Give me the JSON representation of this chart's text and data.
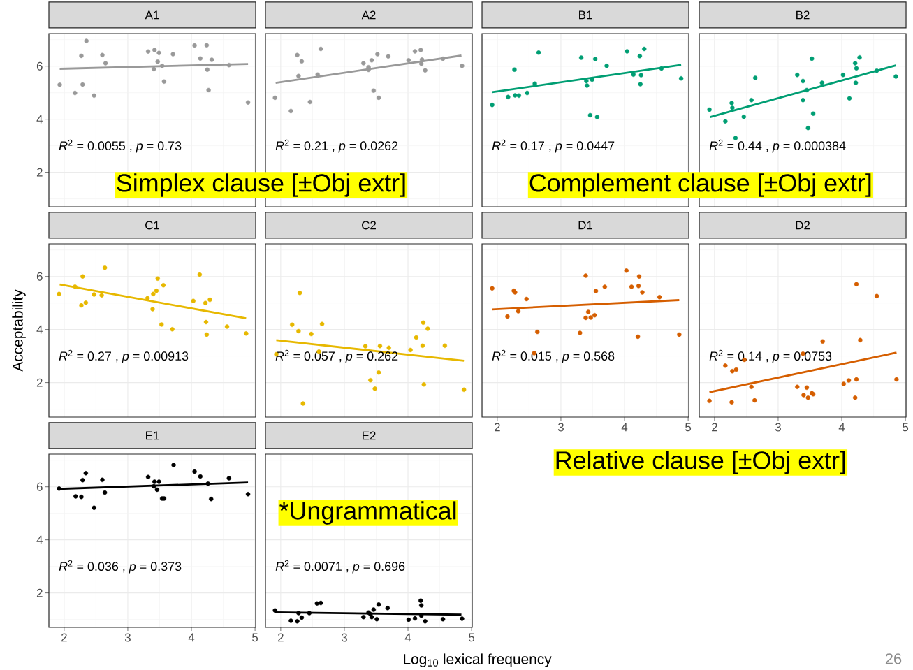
{
  "chart_data": [
    {
      "type": "scatter",
      "title": "A1",
      "xlim": [
        1.76,
        5.01
      ],
      "ylim": [
        0.7,
        7.23
      ],
      "xticks": [
        2,
        3,
        4,
        5
      ],
      "yticks": [
        2,
        4,
        6
      ],
      "grid": true,
      "tick_labels": "y",
      "annotations": [
        "*R*$^{2}$ = 0.0055 , *p* = 0.73",
        "Simplex clause [±Obj extr]"
      ],
      "series": [
        {
          "marker": "circle",
          "color": "#999999",
          "x": [
            1.93,
            2.35,
            2.27,
            2.29,
            2.17,
            2.47,
            2.6,
            2.65,
            3.32,
            3.42,
            3.49,
            3.47,
            3.41,
            3.54,
            3.57,
            3.71,
            4.05,
            4.24,
            4.14,
            4.32,
            4.25,
            4.27,
            4.59,
            4.89
          ],
          "values": [
            5.3,
            6.95,
            6.39,
            5.31,
            4.99,
            4.89,
            6.42,
            6.11,
            6.55,
            6.61,
            6.5,
            6.17,
            5.89,
            6.01,
            5.42,
            6.45,
            6.78,
            6.79,
            6.29,
            6.24,
            5.87,
            5.1,
            6.04,
            4.63
          ]
        },
        {
          "type": "line",
          "color": "#999999",
          "x": [
            1.93,
            4.89
          ],
          "values": [
            5.9,
            6.08
          ]
        }
      ]
    },
    {
      "type": "scatter",
      "title": "A2",
      "xlim": [
        1.76,
        5.01
      ],
      "ylim": [
        0.7,
        7.23
      ],
      "xticks": [
        2,
        3,
        4,
        5
      ],
      "yticks": [
        2,
        4,
        6
      ],
      "grid": true,
      "tick_labels": false,
      "annotations": [
        "*R*$^{2}$ = 0.21 , *p* = 0.0262"
      ],
      "series": [
        {
          "marker": "circle",
          "color": "#999999",
          "x": [
            1.91,
            2.16,
            2.26,
            2.33,
            2.28,
            2.46,
            2.58,
            2.63,
            3.3,
            3.38,
            3.38,
            3.43,
            3.52,
            3.46,
            3.54,
            3.69,
            4.01,
            4.11,
            4.2,
            4.22,
            4.21,
            4.27,
            4.55,
            4.85
          ],
          "values": [
            4.81,
            4.31,
            6.42,
            6.18,
            5.63,
            4.65,
            5.68,
            6.65,
            6.11,
            5.96,
            5.86,
            6.22,
            6.45,
            5.08,
            4.81,
            6.37,
            6.22,
            6.56,
            6.61,
            6.25,
            6.09,
            5.84,
            6.28,
            6.01
          ]
        },
        {
          "type": "line",
          "color": "#999999",
          "x": [
            1.92,
            4.84
          ],
          "values": [
            5.37,
            6.4
          ]
        }
      ]
    },
    {
      "type": "scatter",
      "title": "B1",
      "xlim": [
        1.76,
        5.01
      ],
      "ylim": [
        0.7,
        7.23
      ],
      "xticks": [
        2,
        3,
        4,
        5
      ],
      "yticks": [
        2,
        4,
        6
      ],
      "grid": true,
      "tick_labels": false,
      "annotations": [
        "*R*$^{2}$ = 0.17 , *p* = 0.0447",
        "Complement clause [±Obj extr]"
      ],
      "series": [
        {
          "marker": "circle",
          "color": "#009E73",
          "x": [
            1.92,
            2.17,
            2.27,
            2.28,
            2.34,
            2.47,
            2.59,
            2.65,
            3.32,
            3.4,
            3.41,
            3.49,
            3.54,
            3.46,
            3.57,
            3.72,
            4.04,
            4.14,
            4.24,
            4.26,
            4.25,
            4.31,
            4.58,
            4.89
          ],
          "values": [
            4.54,
            4.84,
            5.87,
            4.9,
            4.89,
            4.99,
            5.34,
            6.51,
            6.32,
            5.44,
            5.27,
            5.49,
            6.27,
            4.15,
            4.08,
            6.01,
            6.56,
            5.68,
            6.38,
            5.66,
            5.32,
            6.65,
            5.91,
            5.54
          ]
        },
        {
          "type": "line",
          "color": "#009E73",
          "x": [
            1.92,
            4.89
          ],
          "values": [
            5.02,
            6.05
          ]
        }
      ]
    },
    {
      "type": "scatter",
      "title": "B2",
      "xlim": [
        1.76,
        5.01
      ],
      "ylim": [
        0.7,
        7.23
      ],
      "xticks": [
        2,
        3,
        4,
        5
      ],
      "yticks": [
        2,
        4,
        6
      ],
      "grid": true,
      "tick_labels": false,
      "annotations": [
        "*R*$^{2}$ = 0.44 , *p* = 0.000384"
      ],
      "series": [
        {
          "marker": "circle",
          "color": "#009E73",
          "x": [
            1.92,
            2.17,
            2.27,
            2.28,
            2.33,
            2.46,
            2.58,
            2.64,
            3.3,
            3.39,
            3.39,
            3.45,
            3.47,
            3.53,
            3.55,
            3.69,
            4.02,
            4.12,
            4.21,
            4.23,
            4.22,
            4.28,
            4.55,
            4.85
          ],
          "values": [
            4.36,
            3.92,
            4.61,
            4.43,
            3.29,
            4.09,
            4.72,
            5.56,
            5.67,
            5.44,
            4.72,
            5.1,
            3.67,
            6.28,
            4.21,
            5.37,
            5.67,
            4.79,
            6.11,
            5.92,
            5.37,
            6.33,
            5.83,
            5.61
          ]
        },
        {
          "type": "line",
          "color": "#009E73",
          "x": [
            1.93,
            4.85
          ],
          "values": [
            4.08,
            6.03
          ]
        }
      ]
    },
    {
      "type": "scatter",
      "title": "C1",
      "ylabel": "Acceptability",
      "xlim": [
        1.76,
        5.01
      ],
      "ylim": [
        0.7,
        7.23
      ],
      "xticks": [
        2,
        3,
        4,
        5
      ],
      "yticks": [
        2,
        4,
        6
      ],
      "grid": true,
      "tick_labels": "y",
      "annotations": [
        "*R*$^{2}$ = 0.27 , *p* = 0.00913"
      ],
      "series": [
        {
          "marker": "circle",
          "color": "#E7B800",
          "x": [
            1.92,
            2.17,
            2.29,
            2.27,
            2.34,
            2.47,
            2.59,
            2.64,
            3.31,
            3.4,
            3.39,
            3.45,
            3.47,
            3.56,
            3.53,
            3.7,
            4.03,
            4.13,
            4.22,
            4.29,
            4.23,
            4.24,
            4.56,
            4.86
          ],
          "values": [
            5.34,
            5.62,
            6.0,
            4.91,
            5.01,
            5.32,
            5.29,
            6.33,
            5.18,
            5.34,
            4.77,
            5.46,
            5.92,
            5.67,
            4.19,
            4.01,
            5.08,
            6.07,
            5.0,
            5.12,
            4.28,
            3.81,
            4.11,
            3.85
          ]
        },
        {
          "type": "line",
          "color": "#E7B800",
          "x": [
            1.93,
            4.86
          ],
          "values": [
            5.7,
            4.42
          ]
        }
      ]
    },
    {
      "type": "scatter",
      "title": "C2",
      "xlim": [
        1.76,
        5.01
      ],
      "ylim": [
        0.7,
        7.23
      ],
      "xticks": [
        2,
        3,
        4,
        5
      ],
      "yticks": [
        2,
        4,
        6
      ],
      "grid": true,
      "tick_labels": false,
      "annotations": [
        "*R*$^{2}$ = 0.057 , *p* = 0.262"
      ],
      "series": [
        {
          "marker": "circle",
          "color": "#E7B800",
          "x": [
            1.93,
            2.18,
            2.3,
            2.28,
            2.35,
            2.48,
            2.6,
            2.65,
            3.33,
            3.41,
            3.48,
            3.54,
            3.56,
            3.7,
            4.04,
            4.13,
            4.24,
            4.31,
            4.23,
            4.25,
            4.58,
            4.88
          ],
          "values": [
            3.07,
            4.18,
            5.38,
            3.94,
            1.21,
            3.83,
            3.17,
            4.21,
            3.37,
            2.09,
            1.77,
            2.38,
            3.38,
            3.31,
            3.23,
            3.7,
            4.26,
            4.03,
            3.39,
            1.93,
            3.39,
            1.73
          ]
        },
        {
          "type": "line",
          "color": "#E7B800",
          "x": [
            1.93,
            4.88
          ],
          "values": [
            3.6,
            2.82
          ]
        }
      ]
    },
    {
      "type": "scatter",
      "title": "D1",
      "xlim": [
        1.76,
        5.01
      ],
      "ylim": [
        0.7,
        7.23
      ],
      "xticks": [
        2,
        3,
        4,
        5
      ],
      "yticks": [
        2,
        4,
        6
      ],
      "grid": true,
      "tick_labels": "x",
      "annotations": [
        "*R*$^{2}$ = 0.015 , *p* = 0.568",
        "Relative clause [±Obj extr]"
      ],
      "series": [
        {
          "marker": "circle",
          "color": "#D55E00",
          "x": [
            1.92,
            2.16,
            2.26,
            2.28,
            2.33,
            2.46,
            2.58,
            2.63,
            3.3,
            3.39,
            3.39,
            3.43,
            3.47,
            3.53,
            3.55,
            3.69,
            4.03,
            4.11,
            4.23,
            4.22,
            4.28,
            4.21,
            4.55,
            4.86
          ],
          "values": [
            5.55,
            4.49,
            5.46,
            5.4,
            4.69,
            5.15,
            3.11,
            3.91,
            3.87,
            6.03,
            4.44,
            4.66,
            4.45,
            4.54,
            5.45,
            5.61,
            6.22,
            5.61,
            6.0,
            5.64,
            5.4,
            3.73,
            5.22,
            3.81
          ]
        },
        {
          "type": "line",
          "color": "#D55E00",
          "x": [
            1.92,
            4.86
          ],
          "values": [
            4.76,
            5.11
          ]
        }
      ]
    },
    {
      "type": "scatter",
      "title": "D2",
      "xlim": [
        1.76,
        5.01
      ],
      "ylim": [
        0.7,
        7.23
      ],
      "xticks": [
        2,
        3,
        4,
        5
      ],
      "yticks": [
        2,
        4,
        6
      ],
      "grid": true,
      "tick_labels": "x",
      "annotations": [
        "*R*$^{2}$ = 0.14 , *p* = 0.0753",
        "26"
      ],
      "series": [
        {
          "marker": "circle",
          "color": "#D55E00",
          "x": [
            1.92,
            2.17,
            2.27,
            2.28,
            2.34,
            2.47,
            2.58,
            2.63,
            3.3,
            3.39,
            3.4,
            3.45,
            3.47,
            3.53,
            3.55,
            3.7,
            4.03,
            4.11,
            4.23,
            4.21,
            4.23,
            4.29,
            4.55,
            4.86
          ],
          "values": [
            1.31,
            2.64,
            1.26,
            2.43,
            2.49,
            2.86,
            1.84,
            1.33,
            1.84,
            3.09,
            1.53,
            1.81,
            1.43,
            1.6,
            1.56,
            3.55,
            1.95,
            2.08,
            2.12,
            1.43,
            5.71,
            3.6,
            5.26,
            2.12
          ]
        },
        {
          "type": "line",
          "color": "#D55E00",
          "x": [
            1.92,
            4.86
          ],
          "values": [
            1.64,
            3.13
          ]
        }
      ]
    },
    {
      "type": "scatter",
      "title": "E1",
      "xlim": [
        1.76,
        5.01
      ],
      "ylim": [
        0.7,
        7.23
      ],
      "xticks": [
        2,
        3,
        4,
        5
      ],
      "yticks": [
        2,
        4,
        6
      ],
      "grid": true,
      "annotations": [
        "*R*$^{2}$ = 0.036 , *p* = 0.373"
      ],
      "series": [
        {
          "marker": "circle",
          "color": "#000000",
          "x": [
            1.92,
            2.18,
            2.27,
            2.29,
            2.34,
            2.47,
            2.6,
            2.64,
            3.32,
            3.42,
            3.49,
            3.41,
            3.46,
            3.54,
            3.57,
            3.72,
            4.05,
            4.14,
            4.26,
            4.31,
            4.59,
            4.89
          ],
          "values": [
            5.93,
            5.64,
            5.62,
            6.25,
            6.51,
            5.21,
            6.26,
            5.78,
            6.37,
            6.19,
            6.19,
            6.02,
            5.89,
            5.56,
            5.56,
            6.82,
            6.57,
            6.39,
            6.12,
            5.54,
            6.32,
            5.72
          ]
        },
        {
          "type": "line",
          "color": "#000000",
          "x": [
            1.92,
            4.89
          ],
          "values": [
            5.92,
            6.16
          ]
        }
      ]
    },
    {
      "type": "scatter",
      "title": "E2",
      "xlabel": "Log$_{10}$ lexical frequency",
      "xlim": [
        1.76,
        5.01
      ],
      "ylim": [
        0.7,
        7.23
      ],
      "xticks": [
        2,
        3,
        4,
        5
      ],
      "yticks": [
        2,
        4,
        6
      ],
      "grid": true,
      "tick_labels": "x",
      "annotations": [
        "*R*$^{2}$ = 0.0071 , *p* = 0.696",
        "*Ungrammatical"
      ],
      "series": [
        {
          "marker": "circle",
          "color": "#000000",
          "x": [
            1.91,
            2.16,
            2.26,
            2.28,
            2.33,
            2.45,
            2.57,
            2.63,
            3.3,
            3.38,
            3.41,
            3.43,
            3.46,
            3.51,
            3.54,
            3.68,
            4.01,
            4.11,
            4.2,
            4.21,
            4.21,
            4.27,
            4.55,
            4.85
          ],
          "values": [
            1.34,
            0.95,
            0.93,
            1.24,
            1.07,
            1.24,
            1.6,
            1.62,
            1.09,
            1.26,
            1.2,
            1.09,
            1.37,
            1.01,
            1.56,
            1.43,
            0.99,
            1.04,
            1.71,
            1.53,
            1.14,
            0.93,
            1.01,
            1.03
          ]
        },
        {
          "type": "line",
          "color": "#000000",
          "x": [
            1.91,
            4.84
          ],
          "values": [
            1.27,
            1.18
          ]
        }
      ]
    }
  ]
}
